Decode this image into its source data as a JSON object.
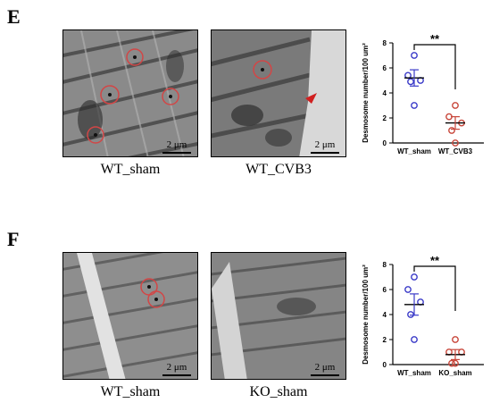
{
  "panels": [
    {
      "letter": "E",
      "images": [
        {
          "caption": "WT_sham",
          "scale_bar": "2 μm"
        },
        {
          "caption": "WT_CVB3",
          "scale_bar": "2 μm"
        }
      ]
    },
    {
      "letter": "F",
      "images": [
        {
          "caption": "WT_sham",
          "scale_bar": "2 μm"
        },
        {
          "caption": "KO_sham",
          "scale_bar": "2 μm"
        }
      ]
    }
  ],
  "colors": {
    "group1": "#3a3ac8",
    "group2": "#c8463a",
    "marker_circle": "#d24646"
  },
  "chart_data": [
    {
      "type": "scatter",
      "ylabel": "Desmosome number/100 um²",
      "ylim": [
        0,
        8
      ],
      "yticks": [
        0,
        2,
        4,
        6,
        8
      ],
      "categories": [
        "WT_sham",
        "WT_CVB3"
      ],
      "series": [
        {
          "category": "WT_sham",
          "values": [
            7,
            5.4,
            5,
            4.9,
            3
          ],
          "mean": 5.2,
          "sem": 0.65,
          "color": "#3a3ac8"
        },
        {
          "category": "WT_CVB3",
          "values": [
            3,
            2.1,
            1.6,
            1.0,
            0
          ],
          "mean": 1.6,
          "sem": 0.5,
          "color": "#c8463a"
        }
      ],
      "significance": "**"
    },
    {
      "type": "scatter",
      "ylabel": "Desmosome number/100 um²",
      "ylim": [
        0,
        8
      ],
      "yticks": [
        0,
        2,
        4,
        6,
        8
      ],
      "categories": [
        "WT_sham",
        "KO_sham"
      ],
      "series": [
        {
          "category": "WT_sham",
          "values": [
            7,
            6,
            5,
            4,
            2
          ],
          "mean": 4.8,
          "sem": 0.85,
          "color": "#3a3ac8"
        },
        {
          "category": "KO_sham",
          "values": [
            2,
            1,
            1,
            0.1,
            0.1
          ],
          "mean": 0.8,
          "sem": 0.4,
          "color": "#c8463a"
        }
      ],
      "significance": "**"
    }
  ]
}
